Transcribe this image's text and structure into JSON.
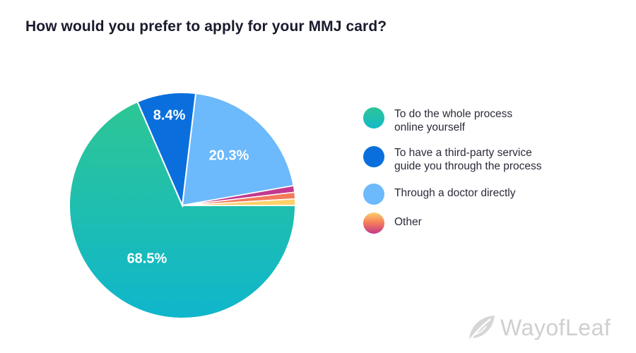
{
  "title": "How would you prefer to apply for your MMJ card?",
  "legend": [
    {
      "line1": "To do the whole process",
      "line2": "online yourself"
    },
    {
      "line1": "To have a third-party service",
      "line2": "guide you through the process"
    },
    {
      "line1": "Through a doctor directly",
      "line2": ""
    },
    {
      "line1": "Other",
      "line2": ""
    }
  ],
  "watermark": "WayofLeaf",
  "colors": {
    "online": "#1bbcb8",
    "third_party": "#0a6fdc",
    "doctor": "#6cb9fc",
    "other_yellow": "#fcd06b",
    "other_orange": "#f37a5a",
    "other_pink": "#c2398f",
    "watermark": "#cfcfcf"
  },
  "chart_data": {
    "type": "pie",
    "title": "How would you prefer to apply for your MMJ card?",
    "slices": [
      {
        "label": "To do the whole process online yourself",
        "value": 68.5,
        "data_label": "68.5%"
      },
      {
        "label": "To have a third-party service guide you through the process",
        "value": 8.4,
        "data_label": "8.4%"
      },
      {
        "label": "Through a doctor directly",
        "value": 20.3,
        "data_label": "20.3%"
      },
      {
        "label": "Other",
        "value": 2.8,
        "data_label": ""
      }
    ],
    "legend_position": "right"
  }
}
